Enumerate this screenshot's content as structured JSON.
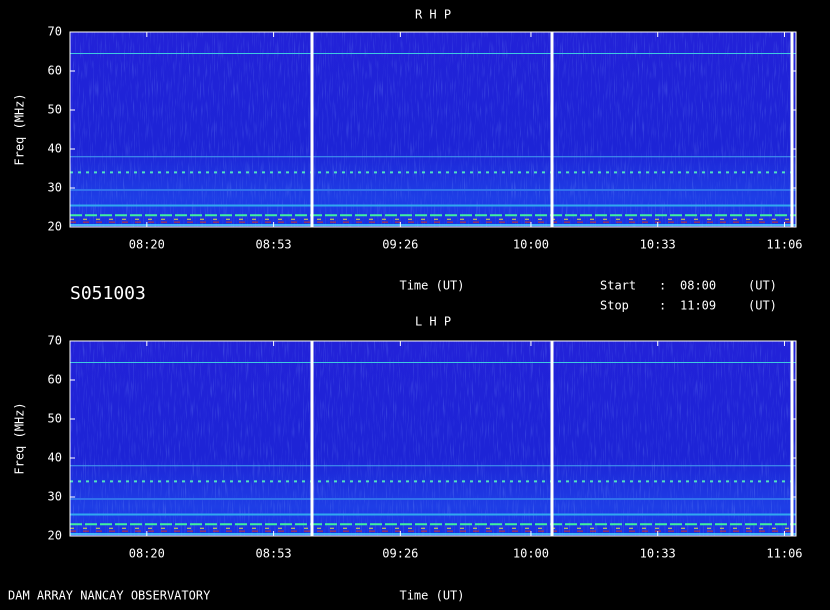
{
  "chart_data": [
    {
      "type": "spectrogram",
      "title": "R H P",
      "y_label": "Freq (MHz)",
      "x_label": "Time (UT)",
      "ylim": [
        20,
        70
      ],
      "yticks": [
        20,
        30,
        40,
        50,
        60,
        70
      ],
      "xlim": [
        480,
        669
      ],
      "xticks": [
        {
          "value": 500,
          "label": "08:20"
        },
        {
          "value": 533,
          "label": "08:53"
        },
        {
          "value": 566,
          "label": "09:26"
        },
        {
          "value": 600,
          "label": "10:00"
        },
        {
          "value": 633,
          "label": "10:33"
        },
        {
          "value": 666,
          "label": "11:06"
        }
      ]
    },
    {
      "type": "spectrogram",
      "title": "L H P",
      "y_label": "Freq (MHz)",
      "x_label": "Time (UT)",
      "ylim": [
        20,
        70
      ],
      "yticks": [
        20,
        30,
        40,
        50,
        60,
        70
      ],
      "xlim": [
        480,
        669
      ],
      "xticks": [
        {
          "value": 500,
          "label": "08:20"
        },
        {
          "value": 533,
          "label": "08:53"
        },
        {
          "value": 566,
          "label": "09:26"
        },
        {
          "value": 600,
          "label": "10:00"
        },
        {
          "value": 633,
          "label": "10:33"
        },
        {
          "value": 666,
          "label": "11:06"
        }
      ]
    }
  ],
  "header": {
    "id": "S051003",
    "start_label": "Start",
    "stop_label": "Stop",
    "separator": ":",
    "start": "08:00",
    "stop": "11:09",
    "unit": "(UT)"
  },
  "footer": "DAM ARRAY  NANCAY OBSERVATORY"
}
